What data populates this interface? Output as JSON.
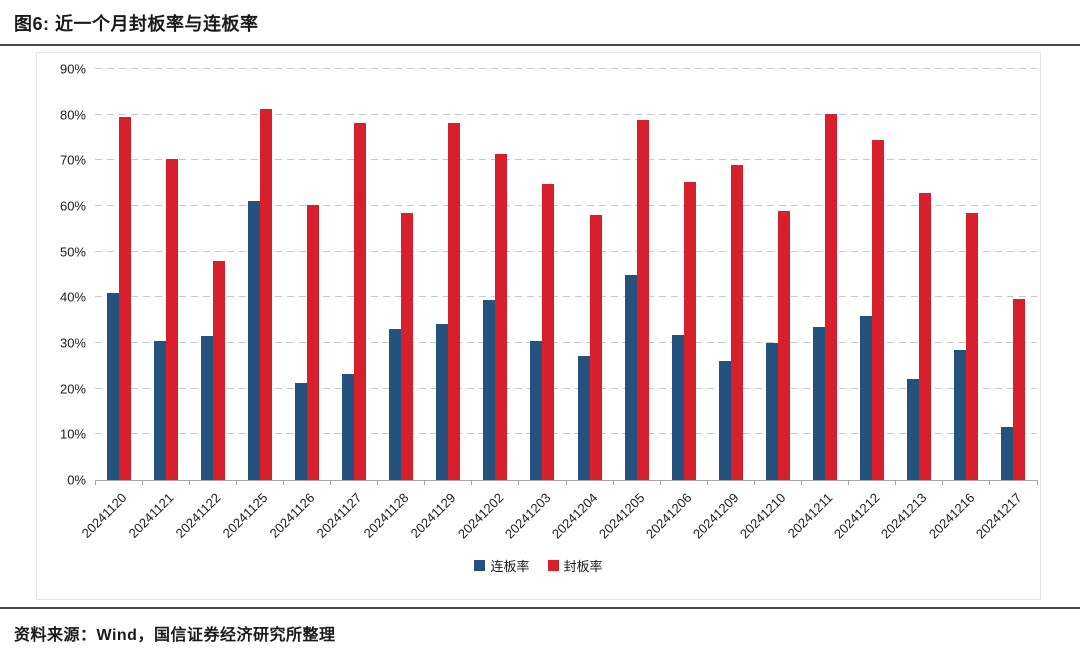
{
  "header": {
    "title": "图6: 近一个月封板率与连板率"
  },
  "footer": {
    "source": "资料来源：Wind，国信证券经济研究所整理"
  },
  "chart_data": {
    "type": "bar",
    "title": "图6: 近一个月封板率与连板率",
    "categories": [
      "20241120",
      "20241121",
      "20241122",
      "20241125",
      "20241126",
      "20241127",
      "20241128",
      "20241129",
      "20241202",
      "20241203",
      "20241204",
      "20241205",
      "20241206",
      "20241209",
      "20241210",
      "20241211",
      "20241212",
      "20241213",
      "20241216",
      "20241217"
    ],
    "series": [
      {
        "id": "lianbanlv",
        "name": "连板率",
        "color": "#25517E",
        "values": [
          40.9,
          30.4,
          31.6,
          61.2,
          21.3,
          23.3,
          33.0,
          34.2,
          39.5,
          30.4,
          27.1,
          45.0,
          31.7,
          26.0,
          30.0,
          33.6,
          36.0,
          22.2,
          28.4,
          11.7
        ]
      },
      {
        "id": "fengbanlv",
        "name": "封板率",
        "color": "#D7202C",
        "values": [
          79.4,
          70.2,
          47.9,
          81.2,
          60.3,
          78.2,
          58.5,
          78.1,
          71.4,
          64.8,
          58.0,
          78.8,
          65.3,
          69.0,
          58.8,
          80.1,
          74.5,
          62.9,
          58.5,
          39.7
        ]
      }
    ],
    "y_ticks": [
      "0%",
      "10%",
      "20%",
      "30%",
      "40%",
      "50%",
      "60%",
      "70%",
      "80%",
      "90%"
    ],
    "ylim": [
      0,
      90
    ],
    "grid": "horizontal-dashed",
    "legend_position": "bottom-center",
    "style": {
      "gridline_color": "#C9C9C9",
      "axis_color": "#A6A6A6",
      "rule_color": "#474747",
      "chart_border_color": "#E4E4E4"
    }
  }
}
